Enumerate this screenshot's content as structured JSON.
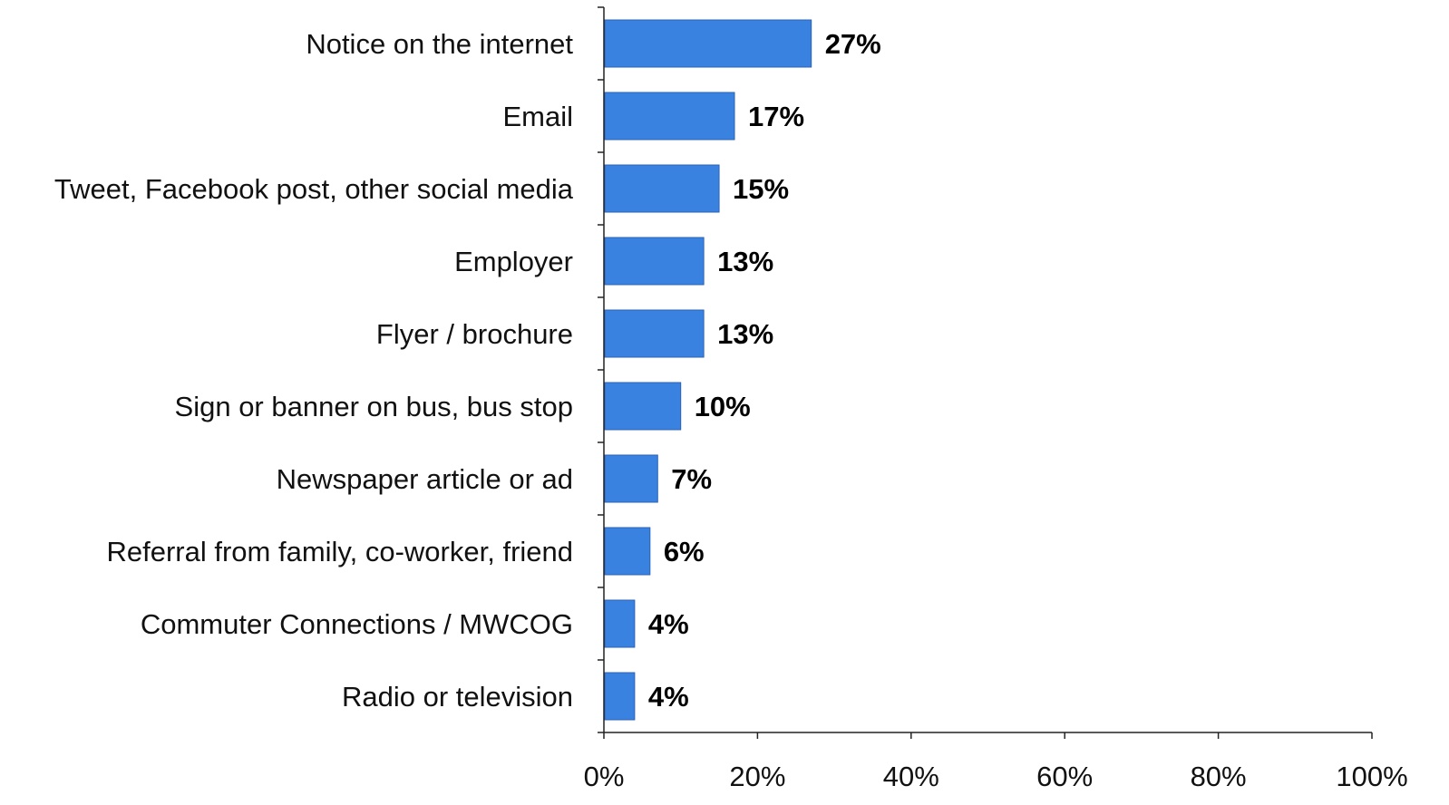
{
  "chart_data": {
    "type": "bar",
    "orientation": "horizontal",
    "title": "",
    "xlabel": "",
    "ylabel": "",
    "categories": [
      "Notice on the internet",
      "Email",
      "Tweet, Facebook post, other social media",
      "Employer",
      "Flyer / brochure",
      "Sign or banner on bus, bus stop",
      "Newspaper article or ad",
      "Referral from family, co-worker, friend",
      "Commuter Connections / MWCOG",
      "Radio or television"
    ],
    "values": [
      27,
      17,
      15,
      13,
      13,
      10,
      7,
      6,
      4,
      4
    ],
    "value_labels": [
      "27%",
      "17%",
      "15%",
      "13%",
      "13%",
      "10%",
      "7%",
      "6%",
      "4%",
      "4%"
    ],
    "xlim": [
      0,
      100
    ],
    "x_ticks": [
      0,
      20,
      40,
      60,
      80,
      100
    ],
    "x_tick_labels": [
      "0%",
      "20%",
      "40%",
      "60%",
      "80%",
      "100%"
    ],
    "grid": false,
    "legend": "none",
    "bar_color": "#3a82e0"
  }
}
